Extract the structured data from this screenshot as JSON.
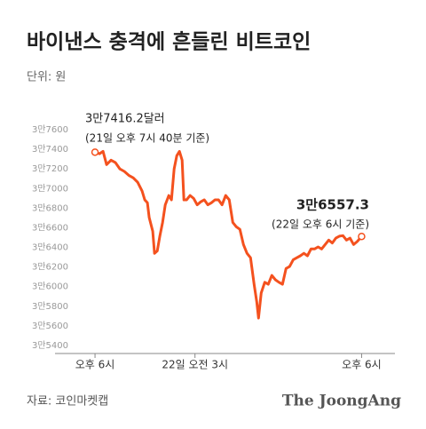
{
  "chart_data": {
    "type": "line",
    "title": "바이낸스 충격에 흔들린 비트코인",
    "unit": "단위: 원",
    "source": "자료: 코인마켓캡",
    "brand": "The JoongAng",
    "color": "#f4511e",
    "x": [
      0,
      0.4,
      0.72,
      1.04,
      1.44,
      1.84,
      2.24,
      2.64,
      3.04,
      3.44,
      3.84,
      4.24,
      4.48,
      4.72,
      4.88,
      5.2,
      5.36,
      5.6,
      5.84,
      6.08,
      6.32,
      6.64,
      6.88,
      7.12,
      7.36,
      7.6,
      7.84,
      8,
      8.24,
      8.56,
      8.88,
      9.2,
      9.52,
      9.84,
      10.16,
      10.48,
      10.8,
      11.12,
      11.44,
      11.76,
      12.08,
      12.4,
      12.72,
      13.04,
      13.36,
      13.68,
      14,
      14.32,
      14.56,
      14.72,
      14.96,
      15.28,
      15.6,
      15.92,
      16.24,
      16.56,
      16.88,
      17.2,
      17.52,
      17.84,
      18.16,
      18.48,
      18.8,
      19.12,
      19.44,
      19.76,
      20.08,
      20.4,
      20.72,
      21.04,
      21.36,
      21.68,
      22,
      22.32,
      22.64,
      22.96,
      23.28,
      23.6,
      24
    ],
    "values": [
      37416.2,
      37400,
      37425,
      37290,
      37335,
      37310,
      37245,
      37220,
      37180,
      37155,
      37110,
      37020,
      36930,
      36900,
      36750,
      36610,
      36385,
      36410,
      36565,
      36700,
      36880,
      36975,
      36930,
      37245,
      37380,
      37425,
      37335,
      36930,
      36930,
      36975,
      36945,
      36880,
      36910,
      36930,
      36880,
      36900,
      36930,
      36930,
      36880,
      36975,
      36930,
      36700,
      36655,
      36630,
      36475,
      36385,
      36340,
      36070,
      35890,
      35725,
      35980,
      36090,
      36070,
      36160,
      36115,
      36090,
      36070,
      36230,
      36250,
      36320,
      36340,
      36360,
      36385,
      36360,
      36430,
      36430,
      36450,
      36430,
      36475,
      36520,
      36490,
      36540,
      36560,
      36565,
      36520,
      36540,
      36475,
      36505,
      36557.3
    ],
    "xlim": [
      -3.6,
      27
    ],
    "xticks": [
      {
        "value": 0,
        "label": "오후 6시"
      },
      {
        "value": 9,
        "label": "22일 오전 3시"
      },
      {
        "value": 24,
        "label": "오후 6시"
      }
    ],
    "ylim": [
      35400,
      37700
    ],
    "yticks": [
      {
        "value": 35400,
        "label": "3만5400"
      },
      {
        "value": 35600,
        "label": "3만5600"
      },
      {
        "value": 35800,
        "label": "3만5800"
      },
      {
        "value": 36000,
        "label": "3만6000"
      },
      {
        "value": 36200,
        "label": "3만6200"
      },
      {
        "value": 36400,
        "label": "3만6400"
      },
      {
        "value": 36600,
        "label": "3만6600"
      },
      {
        "value": 36800,
        "label": "3만6800"
      },
      {
        "value": 37000,
        "label": "3만7000"
      },
      {
        "value": 37200,
        "label": "3만7200"
      },
      {
        "value": 37400,
        "label": "3만7400"
      },
      {
        "value": 37600,
        "label": "3만7600"
      }
    ],
    "annotations": [
      {
        "text": "3만7416.2달러",
        "note": "(21일 오후 7시 40분 기준)"
      },
      {
        "text": "3만6557.3",
        "note": "(22일 오후 6시 기준)"
      }
    ]
  }
}
